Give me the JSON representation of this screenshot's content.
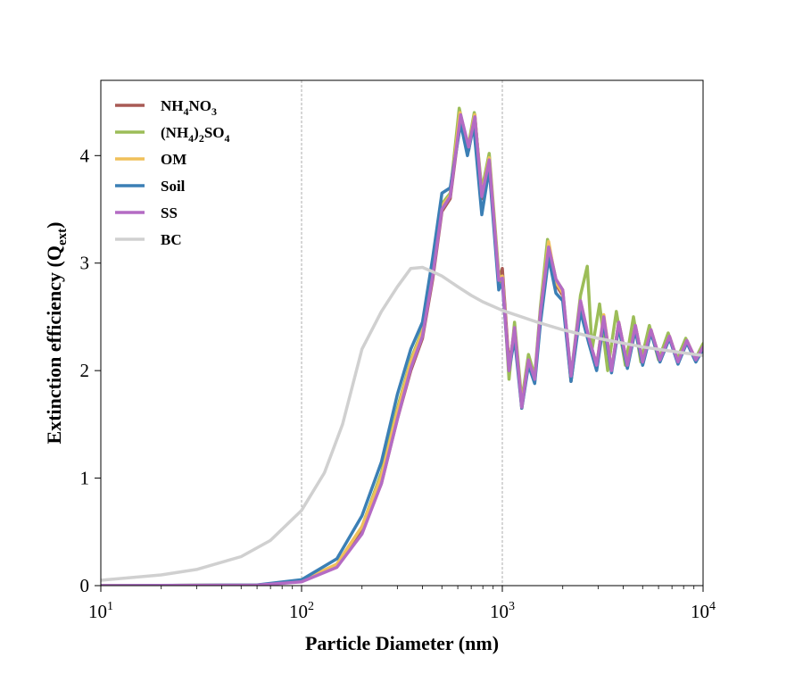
{
  "chart_data": {
    "type": "line",
    "xscale": "log",
    "xlim": [
      10,
      10000
    ],
    "ylim": [
      0,
      4.7
    ],
    "xlabel": "Particle Diameter (nm)",
    "ylabel": {
      "main": "Extinction efficiency (Q",
      "sub": "ext",
      "end": ")"
    },
    "x_ticks": [
      {
        "base": "10",
        "exp": "1",
        "value": 10
      },
      {
        "base": "10",
        "exp": "2",
        "value": 100
      },
      {
        "base": "10",
        "exp": "3",
        "value": 1000
      },
      {
        "base": "10",
        "exp": "4",
        "value": 10000
      }
    ],
    "y_ticks": [
      {
        "label": "0",
        "value": 0
      },
      {
        "label": "1",
        "value": 1
      },
      {
        "label": "2",
        "value": 2
      },
      {
        "label": "3",
        "value": 3
      },
      {
        "label": "4",
        "value": 4
      }
    ],
    "vlines": [
      100,
      1000
    ],
    "legend_position": "upper-left",
    "grid": false,
    "series": [
      {
        "name": "NH4NO3",
        "legend_parts": [
          [
            "NH",
            false
          ],
          [
            "4",
            true
          ],
          [
            "NO",
            false
          ],
          [
            "3",
            true
          ]
        ],
        "color": "#a85a55",
        "points": [
          [
            10,
            0
          ],
          [
            60,
            0.005
          ],
          [
            100,
            0.04
          ],
          [
            150,
            0.18
          ],
          [
            200,
            0.5
          ],
          [
            250,
            0.95
          ],
          [
            300,
            1.55
          ],
          [
            350,
            2.0
          ],
          [
            400,
            2.3
          ],
          [
            450,
            2.85
          ],
          [
            500,
            3.48
          ],
          [
            550,
            3.6
          ],
          [
            620,
            4.36
          ],
          [
            680,
            4.05
          ],
          [
            730,
            4.38
          ],
          [
            790,
            3.6
          ],
          [
            860,
            3.95
          ],
          [
            960,
            2.82
          ],
          [
            1000,
            2.95
          ],
          [
            1080,
            2.05
          ],
          [
            1150,
            2.38
          ],
          [
            1250,
            1.65
          ],
          [
            1350,
            2.08
          ],
          [
            1450,
            1.9
          ],
          [
            1550,
            2.5
          ],
          [
            1700,
            3.18
          ],
          [
            1850,
            2.8
          ],
          [
            2000,
            2.7
          ],
          [
            2200,
            1.9
          ],
          [
            2450,
            2.6
          ],
          [
            2700,
            2.3
          ],
          [
            2950,
            2.05
          ],
          [
            3200,
            2.5
          ],
          [
            3500,
            2.0
          ],
          [
            3800,
            2.45
          ],
          [
            4200,
            2.05
          ],
          [
            4600,
            2.42
          ],
          [
            5000,
            2.08
          ],
          [
            5500,
            2.38
          ],
          [
            6100,
            2.1
          ],
          [
            6800,
            2.32
          ],
          [
            7500,
            2.08
          ],
          [
            8300,
            2.28
          ],
          [
            9200,
            2.1
          ],
          [
            10000,
            2.22
          ]
        ]
      },
      {
        "name": "(NH4)2SO4",
        "legend_parts": [
          [
            "(NH",
            false
          ],
          [
            "4",
            true
          ],
          [
            ")",
            false
          ],
          [
            "2",
            true
          ],
          [
            "SO",
            false
          ],
          [
            "4",
            true
          ]
        ],
        "color": "#9cbd58",
        "points": [
          [
            10,
            0
          ],
          [
            60,
            0.005
          ],
          [
            100,
            0.04
          ],
          [
            150,
            0.2
          ],
          [
            200,
            0.55
          ],
          [
            250,
            1.05
          ],
          [
            300,
            1.65
          ],
          [
            350,
            2.1
          ],
          [
            400,
            2.38
          ],
          [
            450,
            2.95
          ],
          [
            500,
            3.55
          ],
          [
            550,
            3.65
          ],
          [
            610,
            4.44
          ],
          [
            675,
            4.08
          ],
          [
            725,
            4.4
          ],
          [
            790,
            3.68
          ],
          [
            860,
            4.02
          ],
          [
            960,
            2.9
          ],
          [
            1010,
            2.78
          ],
          [
            1080,
            1.92
          ],
          [
            1150,
            2.45
          ],
          [
            1250,
            1.72
          ],
          [
            1350,
            2.15
          ],
          [
            1450,
            1.95
          ],
          [
            1550,
            2.6
          ],
          [
            1680,
            3.22
          ],
          [
            1850,
            2.85
          ],
          [
            2000,
            2.75
          ],
          [
            2200,
            1.95
          ],
          [
            2450,
            2.7
          ],
          [
            2650,
            2.97
          ],
          [
            2800,
            2.2
          ],
          [
            3050,
            2.62
          ],
          [
            3350,
            2.0
          ],
          [
            3700,
            2.55
          ],
          [
            4100,
            2.05
          ],
          [
            4500,
            2.5
          ],
          [
            4900,
            2.08
          ],
          [
            5400,
            2.42
          ],
          [
            6000,
            2.1
          ],
          [
            6700,
            2.35
          ],
          [
            7400,
            2.1
          ],
          [
            8200,
            2.3
          ],
          [
            9100,
            2.1
          ],
          [
            10000,
            2.25
          ]
        ]
      },
      {
        "name": "OM",
        "legend_parts": [
          [
            "OM",
            false
          ]
        ],
        "color": "#f0c05a",
        "points": [
          [
            10,
            0
          ],
          [
            60,
            0.005
          ],
          [
            100,
            0.045
          ],
          [
            150,
            0.2
          ],
          [
            200,
            0.55
          ],
          [
            250,
            1.02
          ],
          [
            300,
            1.62
          ],
          [
            350,
            2.08
          ],
          [
            400,
            2.36
          ],
          [
            450,
            2.92
          ],
          [
            500,
            3.53
          ],
          [
            550,
            3.63
          ],
          [
            615,
            4.4
          ],
          [
            675,
            4.05
          ],
          [
            728,
            4.38
          ],
          [
            790,
            3.63
          ],
          [
            860,
            3.98
          ],
          [
            960,
            2.86
          ],
          [
            1000,
            2.88
          ],
          [
            1080,
            2.0
          ],
          [
            1150,
            2.4
          ],
          [
            1250,
            1.68
          ],
          [
            1350,
            2.1
          ],
          [
            1450,
            1.92
          ],
          [
            1550,
            2.55
          ],
          [
            1700,
            3.2
          ],
          [
            1850,
            2.82
          ],
          [
            2000,
            2.72
          ],
          [
            2200,
            1.92
          ],
          [
            2450,
            2.65
          ],
          [
            2700,
            2.28
          ],
          [
            2950,
            2.05
          ],
          [
            3200,
            2.52
          ],
          [
            3500,
            2.0
          ],
          [
            3800,
            2.45
          ],
          [
            4200,
            2.05
          ],
          [
            4600,
            2.42
          ],
          [
            5000,
            2.08
          ],
          [
            5500,
            2.38
          ],
          [
            6100,
            2.1
          ],
          [
            6800,
            2.32
          ],
          [
            7500,
            2.08
          ],
          [
            8300,
            2.28
          ],
          [
            9200,
            2.1
          ],
          [
            10000,
            2.22
          ]
        ]
      },
      {
        "name": "Soil",
        "legend_parts": [
          [
            "Soil",
            false
          ]
        ],
        "color": "#3b7fb5",
        "points": [
          [
            10,
            0
          ],
          [
            60,
            0.006
          ],
          [
            100,
            0.055
          ],
          [
            150,
            0.25
          ],
          [
            200,
            0.65
          ],
          [
            250,
            1.15
          ],
          [
            300,
            1.78
          ],
          [
            350,
            2.2
          ],
          [
            400,
            2.45
          ],
          [
            450,
            3.05
          ],
          [
            500,
            3.65
          ],
          [
            550,
            3.7
          ],
          [
            620,
            4.3
          ],
          [
            670,
            4.0
          ],
          [
            720,
            4.28
          ],
          [
            790,
            3.45
          ],
          [
            860,
            3.88
          ],
          [
            960,
            2.75
          ],
          [
            1000,
            2.82
          ],
          [
            1080,
            2.0
          ],
          [
            1150,
            2.3
          ],
          [
            1250,
            1.65
          ],
          [
            1350,
            2.05
          ],
          [
            1450,
            1.88
          ],
          [
            1550,
            2.45
          ],
          [
            1700,
            3.05
          ],
          [
            1850,
            2.72
          ],
          [
            2000,
            2.65
          ],
          [
            2200,
            1.9
          ],
          [
            2450,
            2.55
          ],
          [
            2700,
            2.25
          ],
          [
            2950,
            2.0
          ],
          [
            3200,
            2.45
          ],
          [
            3500,
            1.98
          ],
          [
            3800,
            2.4
          ],
          [
            4200,
            2.02
          ],
          [
            4600,
            2.38
          ],
          [
            5000,
            2.05
          ],
          [
            5500,
            2.35
          ],
          [
            6100,
            2.08
          ],
          [
            6800,
            2.3
          ],
          [
            7500,
            2.06
          ],
          [
            8300,
            2.26
          ],
          [
            9200,
            2.08
          ],
          [
            10000,
            2.2
          ]
        ]
      },
      {
        "name": "SS",
        "legend_parts": [
          [
            "SS",
            false
          ]
        ],
        "color": "#b46bc4",
        "points": [
          [
            10,
            0
          ],
          [
            60,
            0.004
          ],
          [
            100,
            0.035
          ],
          [
            150,
            0.17
          ],
          [
            200,
            0.48
          ],
          [
            250,
            0.95
          ],
          [
            300,
            1.55
          ],
          [
            350,
            2.02
          ],
          [
            400,
            2.32
          ],
          [
            450,
            2.88
          ],
          [
            500,
            3.5
          ],
          [
            550,
            3.62
          ],
          [
            620,
            4.38
          ],
          [
            680,
            4.08
          ],
          [
            730,
            4.36
          ],
          [
            790,
            3.62
          ],
          [
            860,
            3.96
          ],
          [
            960,
            2.84
          ],
          [
            1000,
            2.86
          ],
          [
            1080,
            2.0
          ],
          [
            1150,
            2.4
          ],
          [
            1250,
            1.66
          ],
          [
            1350,
            2.1
          ],
          [
            1450,
            1.92
          ],
          [
            1550,
            2.55
          ],
          [
            1700,
            3.15
          ],
          [
            1850,
            2.85
          ],
          [
            2000,
            2.75
          ],
          [
            2200,
            1.95
          ],
          [
            2450,
            2.65
          ],
          [
            2700,
            2.3
          ],
          [
            2950,
            2.05
          ],
          [
            3200,
            2.5
          ],
          [
            3500,
            2.0
          ],
          [
            3800,
            2.45
          ],
          [
            4200,
            2.05
          ],
          [
            4600,
            2.42
          ],
          [
            5000,
            2.08
          ],
          [
            5500,
            2.38
          ],
          [
            6100,
            2.1
          ],
          [
            6800,
            2.32
          ],
          [
            7500,
            2.08
          ],
          [
            8300,
            2.28
          ],
          [
            9200,
            2.1
          ],
          [
            10000,
            2.22
          ]
        ]
      },
      {
        "name": "BC",
        "legend_parts": [
          [
            "BC",
            false
          ]
        ],
        "color": "#d0d0d0",
        "points": [
          [
            10,
            0.05
          ],
          [
            20,
            0.1
          ],
          [
            30,
            0.15
          ],
          [
            50,
            0.27
          ],
          [
            70,
            0.42
          ],
          [
            100,
            0.7
          ],
          [
            130,
            1.05
          ],
          [
            160,
            1.5
          ],
          [
            200,
            2.2
          ],
          [
            250,
            2.55
          ],
          [
            300,
            2.78
          ],
          [
            350,
            2.95
          ],
          [
            400,
            2.96
          ],
          [
            450,
            2.92
          ],
          [
            500,
            2.88
          ],
          [
            600,
            2.78
          ],
          [
            700,
            2.7
          ],
          [
            800,
            2.64
          ],
          [
            1000,
            2.56
          ],
          [
            1500,
            2.45
          ],
          [
            2000,
            2.38
          ],
          [
            3000,
            2.3
          ],
          [
            5000,
            2.22
          ],
          [
            7000,
            2.18
          ],
          [
            10000,
            2.14
          ]
        ]
      }
    ]
  }
}
